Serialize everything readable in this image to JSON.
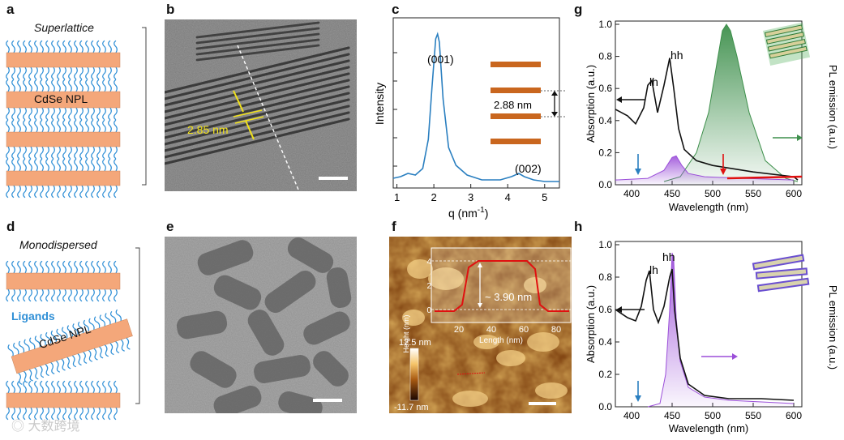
{
  "figure": {
    "panel_labels": [
      "a",
      "b",
      "c",
      "d",
      "e",
      "f",
      "g",
      "h"
    ],
    "a": {
      "title": "Superlattice",
      "npl_label": "CdSe NPL"
    },
    "b": {
      "spacing_label": "2.85 nm"
    },
    "c": {
      "peak1_label": "(001)",
      "peak2_label": "(002)",
      "spacing_label": "2.88 nm",
      "ylabel": "Intensity",
      "xlabel_main": "q (nm",
      "xlabel_sup": "-1",
      "xlabel_tail": ")",
      "xticks": [
        "1",
        "2",
        "3",
        "4",
        "5"
      ]
    },
    "d": {
      "title": "Monodispersed",
      "ligand_label": "Ligands",
      "npl_label": "CdSe NPL"
    },
    "f": {
      "inset_ylabel": "Height (nm)",
      "inset_xlabel": "Length (nm)",
      "inset_xticks": [
        "20",
        "40",
        "60",
        "80"
      ],
      "inset_yticks": [
        "0",
        "2",
        "4"
      ],
      "height_label": "~ 3.90 nm",
      "scale_max": "12.5 nm",
      "scale_min": "-11.7 nm"
    },
    "g": {
      "lh_label": "lh",
      "hh_label": "hh",
      "ylabel_left": "Absorption (a.u.)",
      "ylabel_right": "PL emission (a.u.)",
      "xlabel": "Wavelength (nm)",
      "xticks": [
        "400",
        "450",
        "500",
        "550",
        "600"
      ],
      "yticks": [
        "0.0",
        "0.2",
        "0.4",
        "0.6",
        "0.8",
        "1.0"
      ]
    },
    "h": {
      "lh_label": "lh",
      "hh_label": "hh",
      "ylabel_left": "Absorption (a.u.)",
      "ylabel_right": "PL emission (a.u.)",
      "xlabel": "Wavelength (nm)",
      "xticks": [
        "400",
        "450",
        "500",
        "550",
        "600"
      ],
      "yticks": [
        "0.0",
        "0.2",
        "0.4",
        "0.6",
        "0.8",
        "1.0"
      ]
    },
    "watermark": "大数跨境",
    "colors": {
      "npl": "#f4a77a",
      "ligand": "#2f8fd6",
      "saxs": "#2a7fc0",
      "pl_green": "#3d8f4b",
      "pl_purple": "#9b4fd9",
      "abs": "#111111",
      "arrow_red": "#e01010",
      "arrow_blue": "#2a7fc0",
      "yellow": "#f2e21a"
    }
  },
  "chart_data": [
    {
      "panel": "c",
      "type": "line",
      "xlabel": "q (nm-1)",
      "ylabel": "Intensity",
      "xlim": [
        0.9,
        5.4
      ],
      "series": [
        {
          "x": [
            0.9,
            1.1,
            1.3,
            1.5,
            1.7,
            1.85,
            1.95,
            2.05,
            2.1,
            2.15,
            2.25,
            2.4,
            2.6,
            2.9,
            3.3,
            3.8,
            4.1,
            4.3,
            4.45,
            4.7,
            5.0,
            5.4
          ],
          "y": [
            0.06,
            0.07,
            0.09,
            0.08,
            0.12,
            0.3,
            0.62,
            0.92,
            0.95,
            0.9,
            0.55,
            0.25,
            0.14,
            0.08,
            0.05,
            0.05,
            0.07,
            0.09,
            0.07,
            0.05,
            0.04,
            0.04
          ]
        }
      ]
    },
    {
      "panel": "g",
      "type": "line",
      "xlabel": "Wavelength (nm)",
      "ylabel": "Absorption (a.u.)",
      "xlim": [
        380,
        610
      ],
      "ylim": [
        0,
        1.0
      ],
      "series": [
        {
          "name": "",
          "x": [
            380,
            395,
            405,
            415,
            420,
            425,
            432,
            440,
            447,
            452,
            458,
            465,
            480,
            500,
            550,
            600,
            605
          ],
          "y": [
            0.47,
            0.43,
            0.38,
            0.48,
            0.62,
            0.65,
            0.45,
            0.62,
            0.79,
            0.6,
            0.35,
            0.22,
            0.15,
            0.12,
            0.08,
            0.05,
            0.03
          ]
        },
        {
          "name": "",
          "x": [
            380,
            420,
            440,
            450,
            455,
            462,
            470,
            490,
            540,
            600
          ],
          "y": [
            0.03,
            0.04,
            0.09,
            0.17,
            0.18,
            0.12,
            0.07,
            0.05,
            0.04,
            0.03
          ]
        },
        {
          "name": "",
          "x": [
            440,
            460,
            480,
            495,
            505,
            512,
            517,
            522,
            530,
            545,
            565,
            590,
            605
          ],
          "y": [
            0.02,
            0.05,
            0.2,
            0.45,
            0.75,
            0.96,
            1.0,
            0.96,
            0.8,
            0.45,
            0.15,
            0.04,
            0.02
          ]
        }
      ]
    },
    {
      "panel": "h",
      "type": "line",
      "xlabel": "Wavelength (nm)",
      "ylabel": "Absorption (a.u.)",
      "xlim": [
        380,
        610
      ],
      "ylim": [
        0,
        1.0
      ],
      "series": [
        {
          "name": "",
          "x": [
            380,
            395,
            405,
            412,
            418,
            422,
            427,
            433,
            440,
            447,
            450,
            453,
            460,
            470,
            490,
            520,
            560,
            600
          ],
          "y": [
            0.6,
            0.55,
            0.53,
            0.62,
            0.78,
            0.84,
            0.6,
            0.52,
            0.62,
            0.8,
            0.85,
            0.6,
            0.3,
            0.14,
            0.07,
            0.05,
            0.05,
            0.04
          ]
        },
        {
          "name": "",
          "x": [
            420,
            435,
            442,
            447,
            450,
            452,
            455,
            460,
            470,
            490,
            520,
            560,
            600
          ],
          "y": [
            0.0,
            0.02,
            0.2,
            0.6,
            0.95,
            0.9,
            0.55,
            0.28,
            0.12,
            0.06,
            0.04,
            0.03,
            0.02
          ]
        }
      ]
    }
  ]
}
